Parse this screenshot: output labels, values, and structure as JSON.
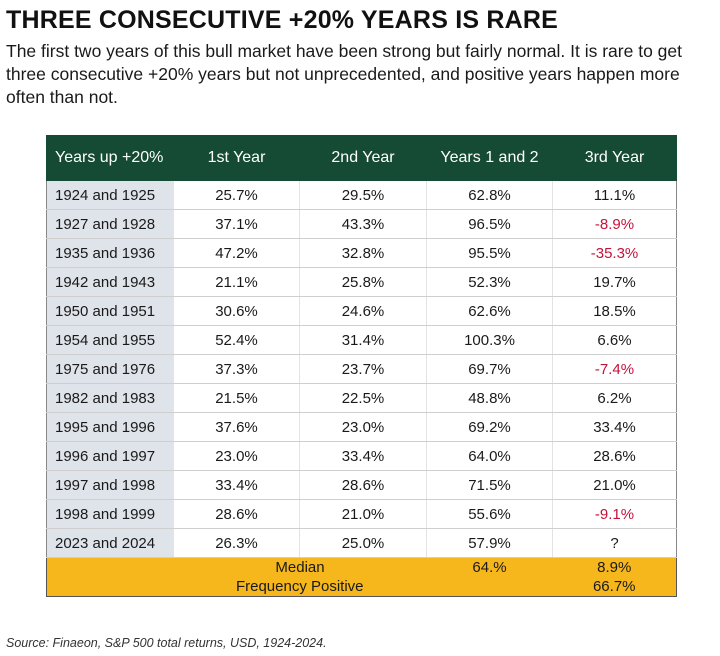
{
  "title": "THREE CONSECUTIVE +20% YEARS IS RARE",
  "subtitle": "The first two years of this bull market have been strong but fairly normal. It is rare to get three consecutive +20% years but not unprecedented, and positive years happen more often than not.",
  "table": {
    "headers": [
      "Years up +20%",
      "1st Year",
      "2nd Year",
      "Years 1 and 2",
      "3rd Year"
    ],
    "rows": [
      [
        "1924 and 1925",
        "25.7%",
        "29.5%",
        "62.8%",
        "11.1%"
      ],
      [
        "1927 and 1928",
        "37.1%",
        "43.3%",
        "96.5%",
        "-8.9%"
      ],
      [
        "1935 and 1936",
        "47.2%",
        "32.8%",
        "95.5%",
        "-35.3%"
      ],
      [
        "1942 and 1943",
        "21.1%",
        "25.8%",
        "52.3%",
        "19.7%"
      ],
      [
        "1950 and 1951",
        "30.6%",
        "24.6%",
        "62.6%",
        "18.5%"
      ],
      [
        "1954 and 1955",
        "52.4%",
        "31.4%",
        "100.3%",
        "6.6%"
      ],
      [
        "1975 and 1976",
        "37.3%",
        "23.7%",
        "69.7%",
        "-7.4%"
      ],
      [
        "1982 and 1983",
        "21.5%",
        "22.5%",
        "48.8%",
        "6.2%"
      ],
      [
        "1995 and 1996",
        "37.6%",
        "23.0%",
        "69.2%",
        "33.4%"
      ],
      [
        "1996 and 1997",
        "23.0%",
        "33.4%",
        "64.0%",
        "28.6%"
      ],
      [
        "1997 and 1998",
        "33.4%",
        "28.6%",
        "71.5%",
        "21.0%"
      ],
      [
        "1998 and 1999",
        "28.6%",
        "21.0%",
        "55.6%",
        "-9.1%"
      ],
      [
        "2023 and 2024",
        "26.3%",
        "25.0%",
        "57.9%",
        "?"
      ]
    ],
    "median": {
      "label": "Median",
      "years_1_and_2": "64.%",
      "third_year": "8.9%"
    },
    "frequency_positive": {
      "label": "Frequency Positive",
      "third_year": "66.7%"
    }
  },
  "colors": {
    "header_bg": "#154a34",
    "summary_bg": "#f6b71d",
    "first_col_bg": "#dfe3ea",
    "negative_text": "#c4123b"
  },
  "source": "Source: Finaeon, S&P 500 total returns, USD,  1924-2024."
}
